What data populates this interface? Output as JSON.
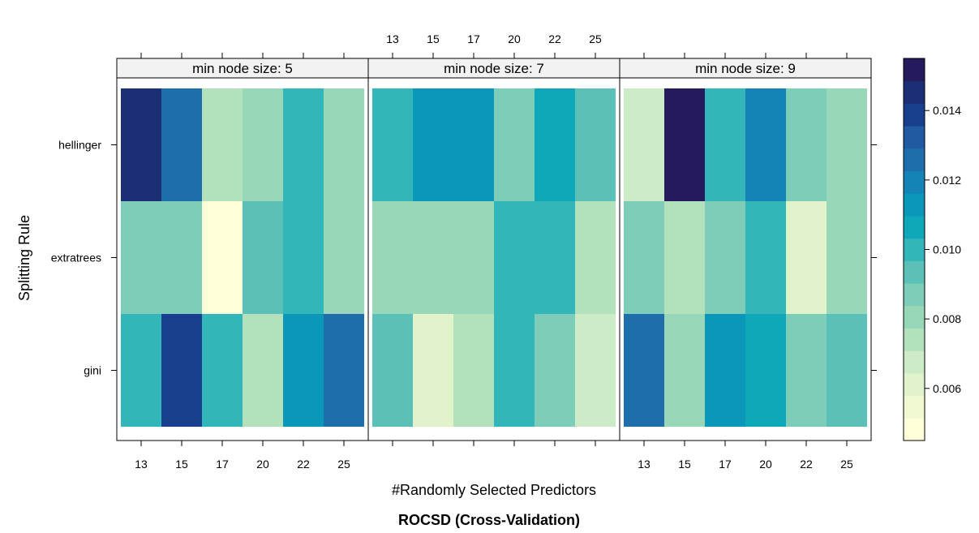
{
  "chart_data": {
    "type": "heatmap",
    "title": "ROCSD (Cross-Validation)",
    "xlabel": "#Randomly Selected Predictors",
    "ylabel": "Splitting Rule",
    "x_categories": [
      "13",
      "15",
      "17",
      "20",
      "22",
      "25"
    ],
    "y_categories": [
      "gini",
      "extratrees",
      "hellinger"
    ],
    "panels": [
      {
        "label": "min node size: 5",
        "values": {
          "hellinger": [
            0.0145,
            0.0127,
            0.0074,
            0.0082,
            0.0103,
            0.0079
          ],
          "extratrees": [
            0.0087,
            0.0087,
            0.0048,
            0.0093,
            0.0103,
            0.0081
          ],
          "gini": [
            0.0103,
            0.0141,
            0.0102,
            0.0073,
            0.0114,
            0.0128
          ]
        }
      },
      {
        "label": "min node size: 7",
        "values": {
          "hellinger": [
            0.0103,
            0.0114,
            0.0114,
            0.0087,
            0.0109,
            0.0093
          ],
          "extratrees": [
            0.0082,
            0.0082,
            0.0082,
            0.0102,
            0.0103,
            0.0077
          ],
          "gini": [
            0.0092,
            0.0061,
            0.0071,
            0.0102,
            0.0087,
            0.0066
          ]
        }
      },
      {
        "label": "min node size: 9",
        "values": {
          "hellinger": [
            0.0065,
            0.0158,
            0.0103,
            0.0117,
            0.0087,
            0.0082
          ],
          "extratrees": [
            0.0087,
            0.0072,
            0.0087,
            0.0102,
            0.0061,
            0.0082
          ],
          "gini": [
            0.0123,
            0.0081,
            0.0115,
            0.0109,
            0.0087,
            0.0093
          ]
        }
      }
    ],
    "colorbar": {
      "range": [
        0.0045,
        0.0155
      ],
      "ticks": [
        "0.006",
        "0.008",
        "0.010",
        "0.012",
        "0.014"
      ],
      "tick_values": [
        0.006,
        0.008,
        0.01,
        0.012,
        0.014
      ],
      "colors": [
        "#ffffd9",
        "#f0f9d2",
        "#e1f3cb",
        "#cdebc6",
        "#b3e1bb",
        "#98d7b8",
        "#7ecdb8",
        "#5bc1b8",
        "#32b6b9",
        "#0fa8ba",
        "#0a97b9",
        "#1483b5",
        "#1e6eac",
        "#1f5aa2",
        "#173f8d",
        "#1d2f74",
        "#251a5c"
      ]
    }
  }
}
